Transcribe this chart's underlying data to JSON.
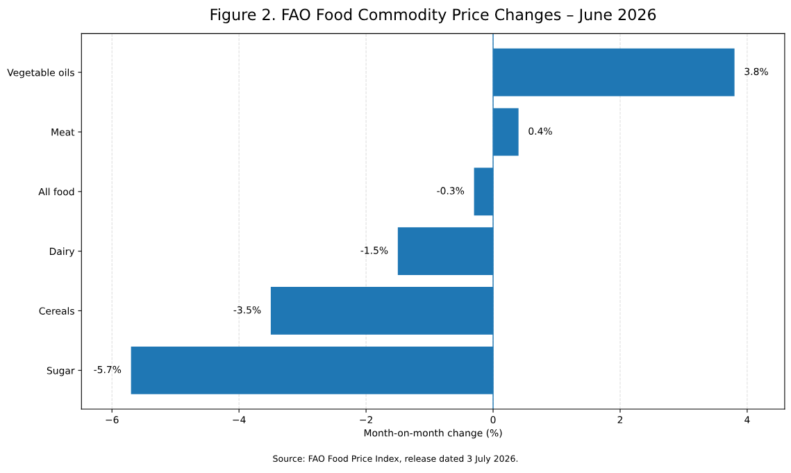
{
  "chart_data": {
    "type": "bar",
    "orientation": "horizontal",
    "title": "Figure 2. FAO Food Commodity Price Changes – June 2026",
    "xlabel": "Month-on-month change (%)",
    "categories": [
      "Vegetable oils",
      "Meat",
      "All food",
      "Dairy",
      "Cereals",
      "Sugar"
    ],
    "values": [
      3.8,
      0.4,
      -0.3,
      -1.5,
      -3.5,
      -5.7
    ],
    "value_labels": [
      "3.8%",
      "0.4%",
      "-0.3%",
      "-1.5%",
      "-3.5%",
      "-5.7%"
    ],
    "color": "#1f77b4",
    "xlim": [
      -6.48,
      4.59
    ],
    "xticks": [
      {
        "value": -6,
        "label": "−6"
      },
      {
        "value": -4,
        "label": "−4"
      },
      {
        "value": -2,
        "label": "−2"
      },
      0,
      2,
      4
    ],
    "ref_lines": [
      {
        "axis": "x",
        "value": 0,
        "color": "#1f77b4",
        "line_style": "solid"
      }
    ],
    "grid": "x",
    "annotations": [
      "Source: FAO Food Price Index, release dated 3 July 2026."
    ]
  }
}
